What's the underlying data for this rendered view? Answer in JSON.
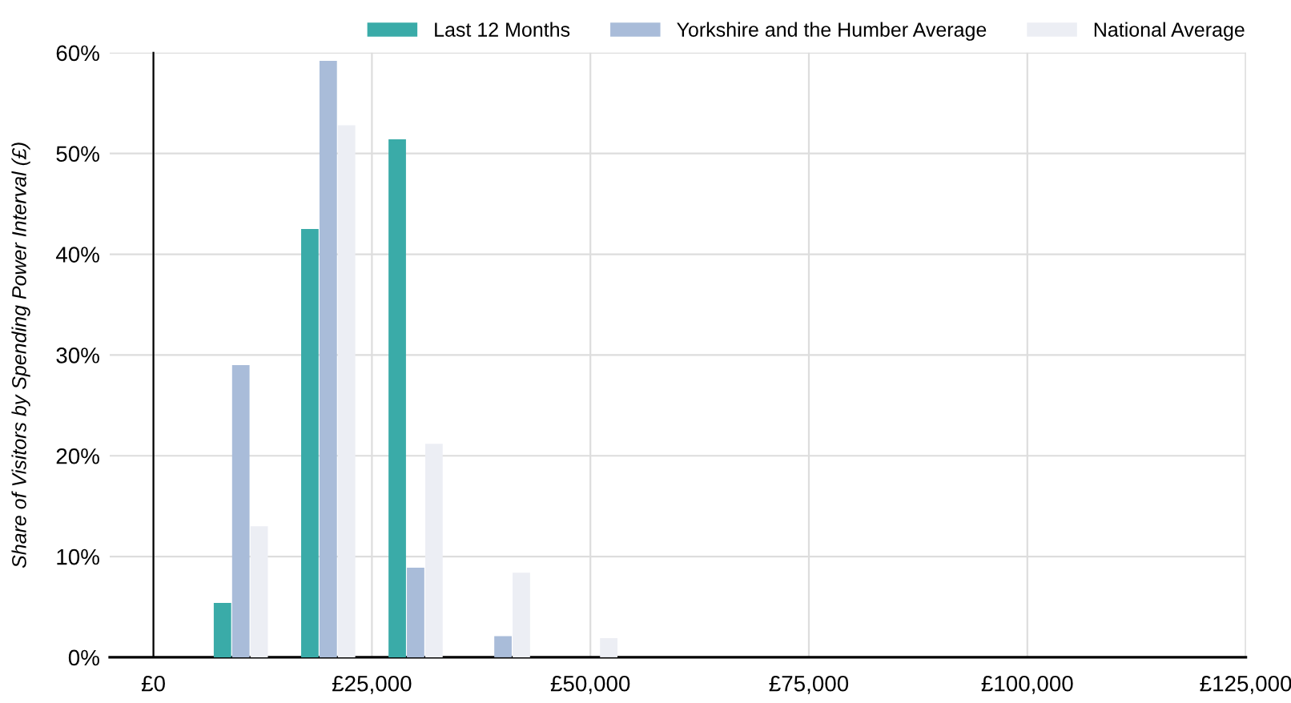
{
  "chart_data": {
    "type": "bar",
    "ylabel": "Share of Visitors by Spending Power Interval (£)",
    "x": [
      10000,
      20000,
      30000,
      40000,
      50000
    ],
    "series": [
      {
        "name": "Last 12 Months",
        "color": "#3aaba8",
        "values": [
          5.4,
          42.5,
          51.4,
          0,
          0
        ]
      },
      {
        "name": "Yorkshire and the Humber Average",
        "color": "#a9bcd9",
        "values": [
          29.0,
          59.2,
          8.9,
          2.1,
          0
        ]
      },
      {
        "name": "National Average",
        "color": "#eceef4",
        "values": [
          13.0,
          52.8,
          21.2,
          8.4,
          1.9
        ]
      }
    ],
    "xlim": [
      -5000,
      125000
    ],
    "xticks": [
      {
        "value": 0,
        "label": "£0"
      },
      {
        "value": 25000,
        "label": "£25,000"
      },
      {
        "value": 50000,
        "label": "£50,000"
      },
      {
        "value": 75000,
        "label": "£75,000"
      },
      {
        "value": 100000,
        "label": "£100,000"
      },
      {
        "value": 125000,
        "label": "£125,000"
      }
    ],
    "ylim": [
      0,
      60
    ],
    "yticks": [
      {
        "value": 0,
        "label": "0%"
      },
      {
        "value": 10,
        "label": "10%"
      },
      {
        "value": 20,
        "label": "20%"
      },
      {
        "value": 30,
        "label": "30%"
      },
      {
        "value": 40,
        "label": "40%"
      },
      {
        "value": 50,
        "label": "50%"
      },
      {
        "value": 60,
        "label": "60%"
      }
    ],
    "grid": true,
    "legend": "top right"
  }
}
